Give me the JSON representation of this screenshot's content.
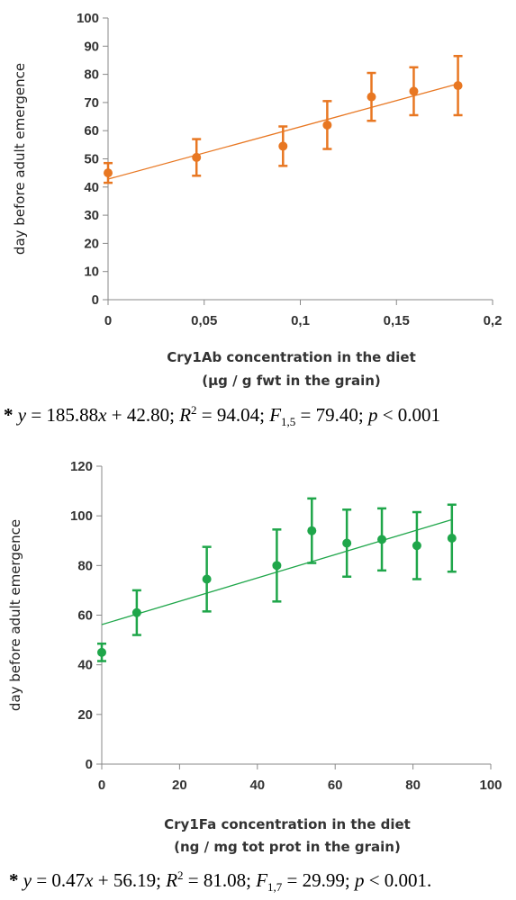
{
  "chart_data": [
    {
      "type": "scatter",
      "ylabel": "day before adult emergence",
      "xlabel": [
        "Cry1Ab concentration in the diet",
        "(µg / g fwt in the grain)"
      ],
      "xlim": [
        0,
        0.2
      ],
      "ylim": [
        0,
        100
      ],
      "xticks": [
        0,
        0.05,
        0.1,
        0.15,
        0.2
      ],
      "xtick_labels": [
        "0",
        "0,05",
        "0,1",
        "0,15",
        "0,2"
      ],
      "yticks": [
        0,
        10,
        20,
        30,
        40,
        50,
        60,
        70,
        80,
        90,
        100
      ],
      "ytick_labels": [
        "0",
        "10",
        "20",
        "30",
        "40",
        "50",
        "60",
        "70",
        "80",
        "90",
        "100"
      ],
      "grid": false,
      "color": "#E87722",
      "points": [
        {
          "x": 0,
          "y": 45,
          "err": 3.5
        },
        {
          "x": 0.046,
          "y": 50.5,
          "err": 6.5
        },
        {
          "x": 0.091,
          "y": 54.5,
          "err": 7
        },
        {
          "x": 0.114,
          "y": 62,
          "err": 8.5
        },
        {
          "x": 0.137,
          "y": 72,
          "err": 8.5
        },
        {
          "x": 0.159,
          "y": 74,
          "err": 8.5
        },
        {
          "x": 0.182,
          "y": 76,
          "err": 10.5
        }
      ],
      "trendline": {
        "slope": 185.88,
        "intercept": 42.8,
        "x_range": [
          0,
          0.182
        ]
      },
      "equation": {
        "star": "*",
        "y": "y",
        "eq1": " = 185.88",
        "x": "x",
        "eq2": " + 42.80; ",
        "r": "R",
        "sup": "2",
        "eq3": " = 94.04; ",
        "f": "F",
        "sub": "1,5",
        "eq4": " = 79.40; ",
        "p": "p",
        "eq5": " < 0.001"
      }
    },
    {
      "type": "scatter",
      "ylabel": "day before adult emergence",
      "xlabel": [
        "Cry1Fa concentration in the diet",
        "(ng / mg tot prot in the grain)"
      ],
      "xlim": [
        0,
        100
      ],
      "ylim": [
        0,
        120
      ],
      "xticks": [
        0,
        20,
        40,
        60,
        80,
        100
      ],
      "xtick_labels": [
        "0",
        "20",
        "40",
        "60",
        "80",
        "100"
      ],
      "yticks": [
        0,
        20,
        40,
        60,
        80,
        100,
        120
      ],
      "ytick_labels": [
        "0",
        "20",
        "40",
        "60",
        "80",
        "100",
        "120"
      ],
      "grid": false,
      "color": "#1FA64A",
      "points": [
        {
          "x": 0,
          "y": 45,
          "err": 3.5
        },
        {
          "x": 9,
          "y": 61,
          "err": 9
        },
        {
          "x": 27,
          "y": 74.5,
          "err": 13
        },
        {
          "x": 45,
          "y": 80,
          "err": 14.5
        },
        {
          "x": 54,
          "y": 94,
          "err": 13
        },
        {
          "x": 63,
          "y": 89,
          "err": 13.5
        },
        {
          "x": 72,
          "y": 90.5,
          "err": 12.5
        },
        {
          "x": 81,
          "y": 88,
          "err": 13.5
        },
        {
          "x": 90,
          "y": 91,
          "err": 13.5
        }
      ],
      "trendline": {
        "slope": 0.47,
        "intercept": 56.19,
        "x_range": [
          0,
          90
        ]
      },
      "equation": {
        "star": "*",
        "y": "y",
        "eq1": " = 0.47",
        "x": "x",
        "eq2": " + 56.19; ",
        "r": "R",
        "sup": "2",
        "eq3": " = 81.08; ",
        "f": "F",
        "sub": "1,7",
        "eq4": " = 29.99; ",
        "p": "p",
        "eq5": " < 0.001."
      }
    }
  ]
}
